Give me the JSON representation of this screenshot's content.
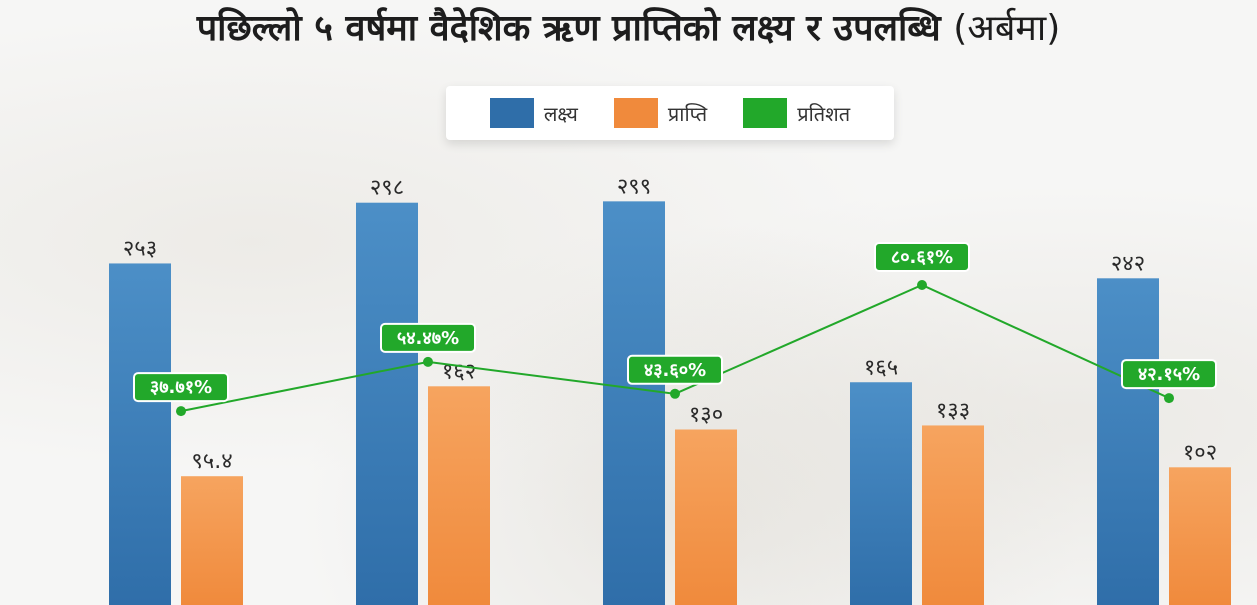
{
  "title": "पछिल्लो ५ वर्षमा वैदेशिक ऋण प्राप्तिको लक्ष्य र उपलब्धि",
  "unit_note": "(अर्बमा)",
  "legend": [
    {
      "label": "लक्ष्य",
      "color": "#2f6ea9"
    },
    {
      "label": "प्राप्ति",
      "color": "#f08a3c"
    },
    {
      "label": "प्रतिशत",
      "color": "#22a82a"
    }
  ],
  "chart_data": {
    "type": "bar",
    "title": "पछिल्लो ५ वर्षमा वैदेशिक ऋण प्राप्तिको लक्ष्य र उपलब्धि",
    "unit": "(अर्बमा)",
    "categories": [
      "",
      "",
      "",
      "",
      ""
    ],
    "series": [
      {
        "name": "लक्ष्य",
        "color": "#2f6ea9",
        "values": [
          253,
          298,
          299,
          165,
          242
        ],
        "labels": [
          "२५३",
          "२९८",
          "२९९",
          "१६५",
          "२४२"
        ]
      },
      {
        "name": "प्राप्ति",
        "color": "#f08a3c",
        "values": [
          95.4,
          162,
          130,
          133,
          102
        ],
        "labels": [
          "९५.४",
          "१६२",
          "१३०",
          "१३३",
          "१०२"
        ]
      },
      {
        "name": "प्रतिशत",
        "type": "line",
        "color": "#22a82a",
        "values": [
          37.71,
          54.47,
          43.6,
          80.61,
          42.15
        ],
        "labels": [
          "३७.७१%",
          "५४.४७%",
          "४३.६०%",
          "८०.६१%",
          "४२.१५%"
        ]
      }
    ],
    "legend_position": "top-center",
    "grid": false
  }
}
